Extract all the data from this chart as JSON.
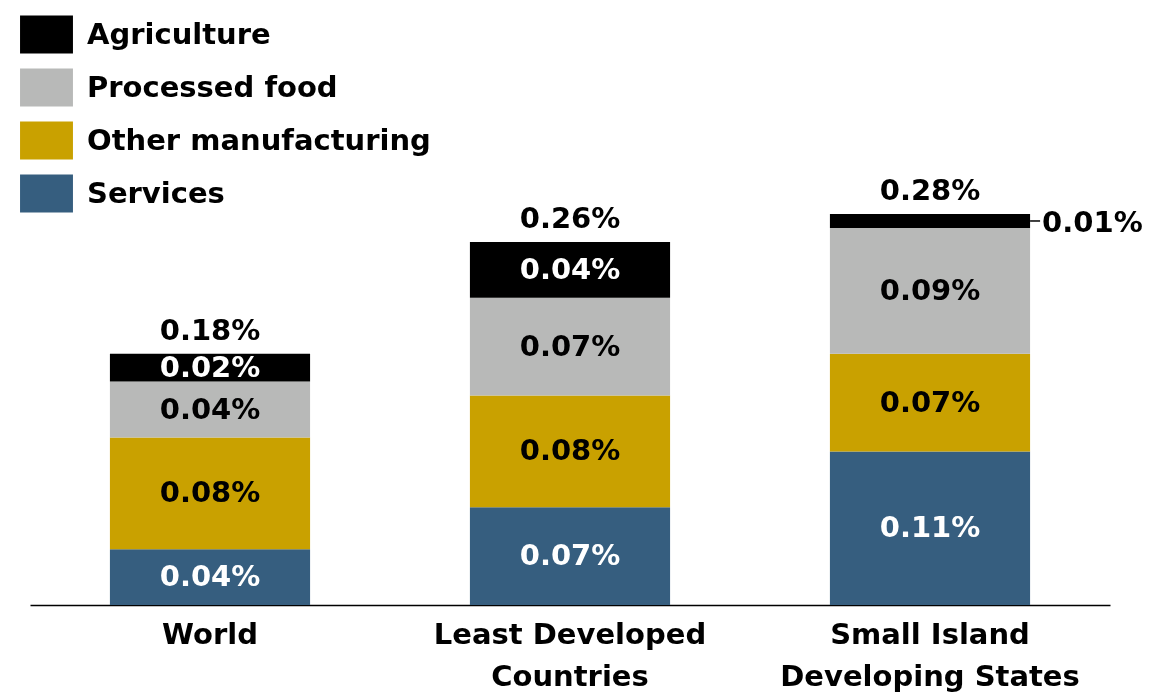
{
  "chart_data": {
    "type": "bar",
    "stacked": true,
    "legend": "top left",
    "tick_labels": "x",
    "categories": [
      "World",
      "Least Developed Countries",
      "Small Island Developing States"
    ],
    "series": [
      {
        "name": "Services",
        "color": "#365e7f",
        "values": [
          0.04,
          0.07,
          0.11
        ],
        "value_labels": [
          "0.04%",
          "0.07%",
          "0.11%"
        ]
      },
      {
        "name": "Other manufacturing",
        "color": "#c9a100",
        "values": [
          0.08,
          0.08,
          0.07
        ],
        "value_labels": [
          "0.08%",
          "0.08%",
          "0.07%"
        ]
      },
      {
        "name": "Processed food",
        "color": "#b8b9b8",
        "values": [
          0.04,
          0.07,
          0.09
        ],
        "value_labels": [
          "0.04%",
          "0.07%",
          "0.09%"
        ]
      },
      {
        "name": "Agriculture",
        "color": "#000000",
        "values": [
          0.02,
          0.04,
          0.01
        ],
        "value_labels": [
          "0.02%",
          "0.04%",
          "0.01%"
        ]
      }
    ],
    "totals": [
      "0.18%",
      "0.26%",
      "0.28%"
    ]
  }
}
